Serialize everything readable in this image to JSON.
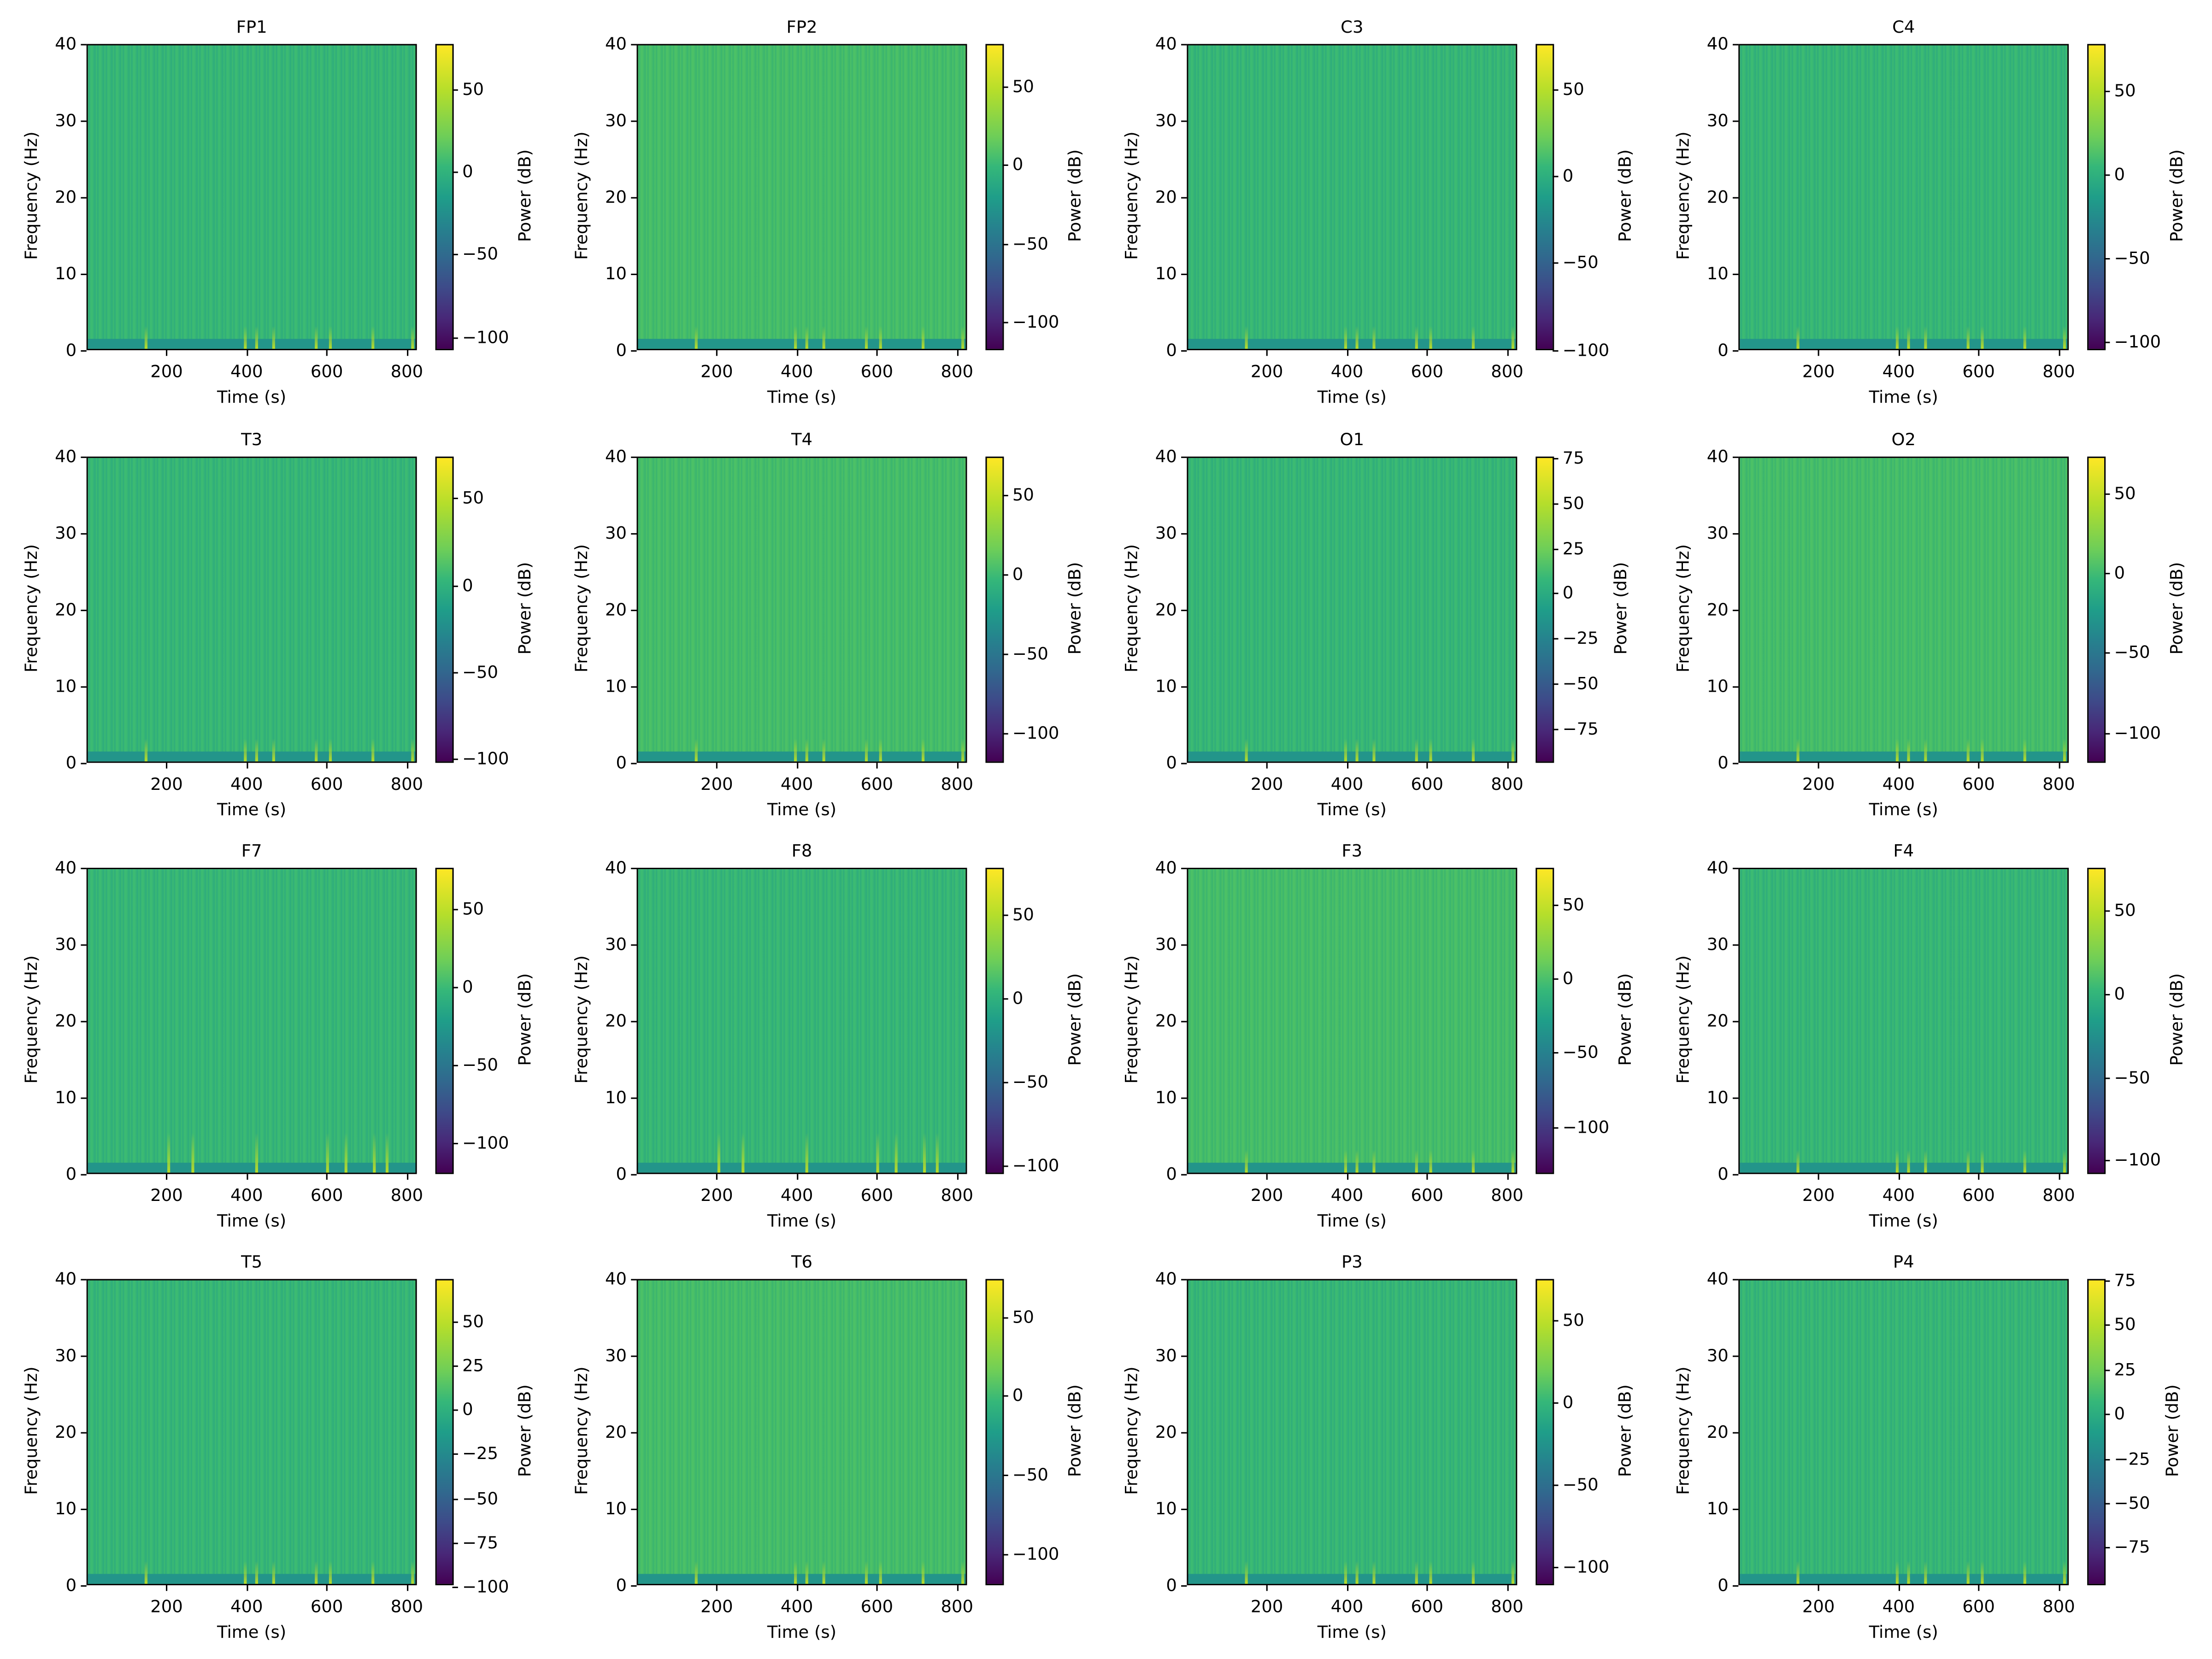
{
  "chart_data": {
    "type": "heatmap",
    "layout": {
      "rows": 4,
      "cols": 4
    },
    "shared": {
      "xlabel": "Time (s)",
      "ylabel": "Frequency (Hz)",
      "colorbar_label": "Power (dB)",
      "colormap": "viridis",
      "xlim": [
        0,
        825
      ],
      "ylim": [
        0,
        40
      ],
      "xticks": [
        200,
        400,
        600,
        800
      ],
      "yticks": [
        0,
        10,
        20,
        30,
        40
      ]
    },
    "panels": [
      {
        "title": "FP1",
        "vmin": -109,
        "vmax": 77,
        "cticks": [
          50,
          0,
          -50,
          -100
        ],
        "mean_power_db": 20
      },
      {
        "title": "FP2",
        "vmin": -119,
        "vmax": 76,
        "cticks": [
          50,
          0,
          -50,
          -100
        ],
        "mean_power_db": 22
      },
      {
        "title": "C3",
        "vmin": -101,
        "vmax": 75,
        "cticks": [
          50,
          0,
          -50,
          -100
        ],
        "mean_power_db": 17
      },
      {
        "title": "C4",
        "vmin": -106,
        "vmax": 77,
        "cticks": [
          50,
          0,
          -50,
          -100
        ],
        "mean_power_db": 17
      },
      {
        "title": "T3",
        "vmin": -103,
        "vmax": 73,
        "cticks": [
          50,
          0,
          -50,
          -100
        ],
        "mean_power_db": 19
      },
      {
        "title": "T4",
        "vmin": -120,
        "vmax": 73,
        "cticks": [
          50,
          0,
          -50,
          -100
        ],
        "mean_power_db": 22
      },
      {
        "title": "O1",
        "vmin": -95,
        "vmax": 75,
        "cticks": [
          75,
          50,
          25,
          0,
          -25,
          -50,
          -75
        ],
        "mean_power_db": 15
      },
      {
        "title": "O2",
        "vmin": -120,
        "vmax": 72,
        "cticks": [
          50,
          0,
          -50,
          -100
        ],
        "mean_power_db": 23
      },
      {
        "title": "F7",
        "vmin": -121,
        "vmax": 75,
        "cticks": [
          50,
          0,
          -50,
          -100
        ],
        "mean_power_db": 20
      },
      {
        "title": "F8",
        "vmin": -106,
        "vmax": 77,
        "cticks": [
          50,
          0,
          -50,
          -100
        ],
        "mean_power_db": 18
      },
      {
        "title": "F3",
        "vmin": -133,
        "vmax": 74,
        "cticks": [
          50,
          0,
          -50,
          -100
        ],
        "mean_power_db": 22
      },
      {
        "title": "F4",
        "vmin": -109,
        "vmax": 75,
        "cticks": [
          50,
          0,
          -50,
          -100
        ],
        "mean_power_db": 19
      },
      {
        "title": "T5",
        "vmin": -100,
        "vmax": 73,
        "cticks": [
          50,
          25,
          0,
          -25,
          -50,
          -75,
          -100
        ],
        "mean_power_db": 18
      },
      {
        "title": "T6",
        "vmin": -121,
        "vmax": 73,
        "cticks": [
          50,
          0,
          -50,
          -100
        ],
        "mean_power_db": 23
      },
      {
        "title": "P3",
        "vmin": -112,
        "vmax": 74,
        "cticks": [
          50,
          0,
          -50,
          -100
        ],
        "mean_power_db": 18
      },
      {
        "title": "P4",
        "vmin": -97,
        "vmax": 75,
        "cticks": [
          75,
          50,
          25,
          0,
          -25,
          -50,
          -75
        ],
        "mean_power_db": 16
      }
    ]
  },
  "colors": {
    "body_green": "#3fbc6e",
    "body_green_dark": "#2fae7a",
    "low_band": "#23958a",
    "streak_yellow": "#b8de29"
  }
}
